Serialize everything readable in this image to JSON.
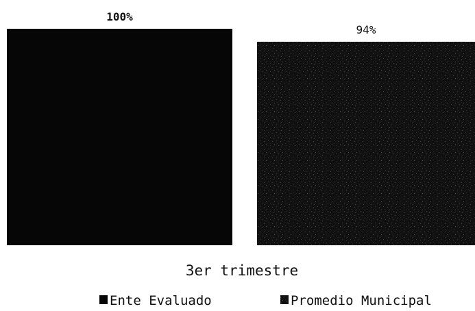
{
  "chart_data": {
    "type": "bar",
    "categories": [
      "3er trimestre"
    ],
    "series": [
      {
        "name": "Ente Evaluado",
        "values": [
          100
        ],
        "value_label": "100%",
        "color": "#060606",
        "pattern": "solid"
      },
      {
        "name": "Promedio Municipal",
        "values": [
          94
        ],
        "value_label": "94%",
        "color": "#141414",
        "pattern": "speckled"
      }
    ],
    "unit": "%",
    "ylim": [
      0,
      100
    ],
    "grid": false,
    "legend_position": "bottom-right",
    "title": "",
    "xlabel": "",
    "ylabel": ""
  }
}
